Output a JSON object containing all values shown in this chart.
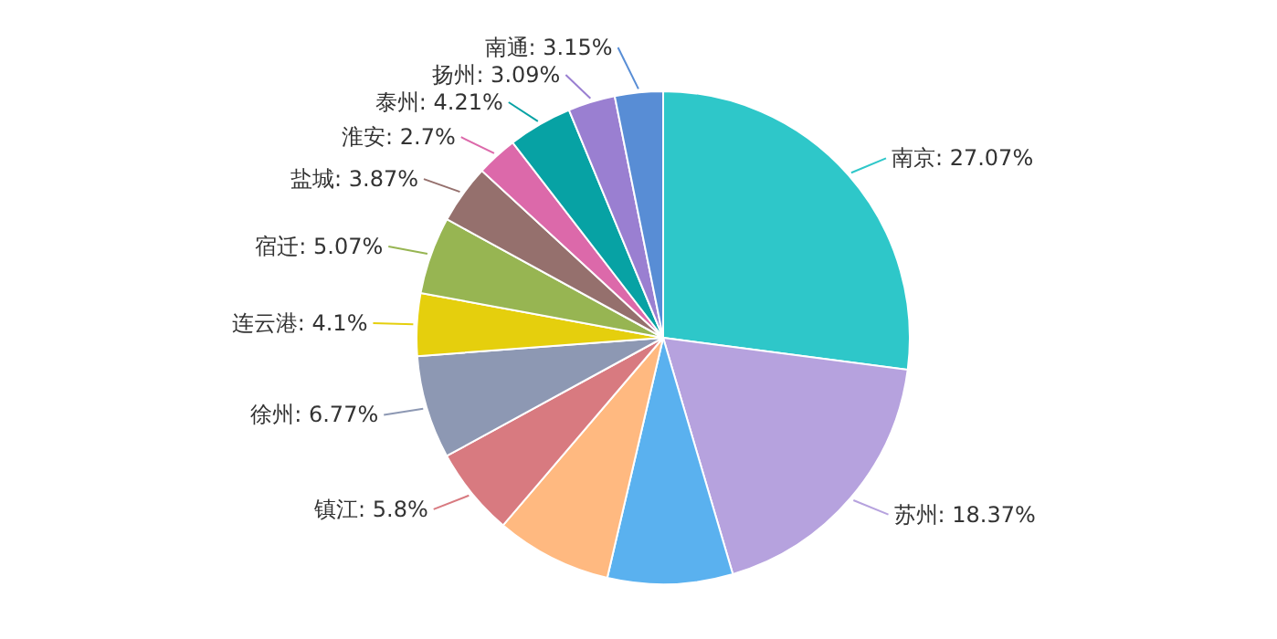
{
  "chart_data": {
    "type": "pie",
    "categories": [
      "南京",
      "苏州",
      null,
      null,
      "镇江",
      "徐州",
      "连云港",
      "宿迁",
      "盐城",
      "淮安",
      "泰州",
      "扬州",
      "南通"
    ],
    "values": [
      27.07,
      18.37,
      8.2,
      7.6,
      5.8,
      6.77,
      4.1,
      5.07,
      3.87,
      2.7,
      4.21,
      3.09,
      3.15
    ],
    "value_labels": [
      "27.07%",
      "18.37%",
      null,
      null,
      "5.8%",
      "6.77%",
      "4.1%",
      "5.07%",
      "3.87%",
      "2.7%",
      "4.21%",
      "3.09%",
      "3.15%"
    ],
    "colors": [
      "#2ec7c9",
      "#b6a2de",
      "#5ab1ef",
      "#ffb980",
      "#d87a80",
      "#8d98b3",
      "#e5cf0d",
      "#97b552",
      "#95706d",
      "#dc69aa",
      "#07a2a4",
      "#9a7fd1",
      "#588dd5"
    ]
  }
}
